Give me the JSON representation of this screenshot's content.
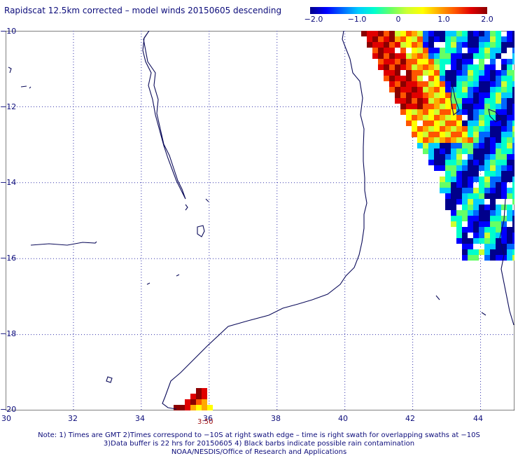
{
  "title": "Rapidscat 12.5km corrected – model winds 20150605 descending",
  "colorbar": {
    "ticks": [
      "−2.0",
      "−1.0",
      "0",
      "1.0",
      "2.0"
    ],
    "tick_values": [
      -2.0,
      -1.0,
      0,
      1.0,
      2.0
    ],
    "min": -2.0,
    "max": 2.0,
    "colors": [
      "#00008b",
      "#0000ff",
      "#0066ff",
      "#00ccff",
      "#00ffcc",
      "#66ff66",
      "#ccff33",
      "#ffff00",
      "#ffaa00",
      "#ff5500",
      "#e00000",
      "#8b0000"
    ]
  },
  "map": {
    "lon_range": [
      30,
      45
    ],
    "lat_range": [
      -20,
      -10
    ],
    "x_ticks": [
      "30",
      "32",
      "34",
      "36",
      "38",
      "40",
      "42",
      "44"
    ],
    "y_ticks": [
      "−10",
      "−12",
      "−14",
      "−16",
      "−18",
      "−20"
    ],
    "grid": "dotted",
    "coastline_color": "#0b0b5a"
  },
  "swath_time": "3:50",
  "notes": [
    "Note: 1) Times are GMT 2)Times correspond to −10S at right swath edge – time is right swath for overlapping swaths at −10S",
    "3)Data buffer is 22 hrs for 20150605 4) Black barbs indicate possible rain contamination",
    "NOAA/NESDIS/Office of Research and Applications"
  ]
}
